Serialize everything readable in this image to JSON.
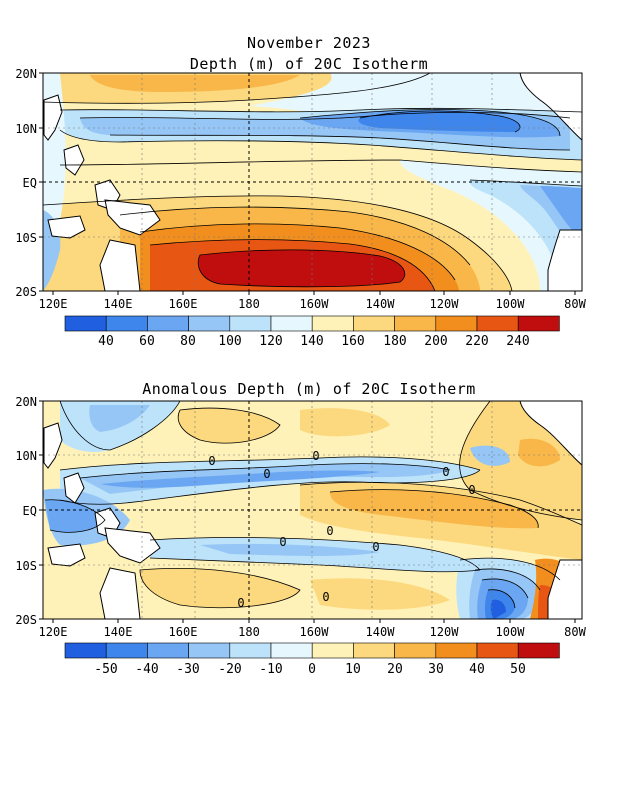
{
  "title": "November 2023",
  "panel1": {
    "title": "Depth (m) of 20C Isotherm",
    "lat_labels": [
      "20N",
      "10N",
      "EQ",
      "10S",
      "20S"
    ],
    "lon_labels": [
      "120E",
      "140E",
      "160E",
      "180",
      "160W",
      "140W",
      "120W",
      "100W",
      "80W"
    ],
    "colorbar": {
      "labels": [
        "40",
        "60",
        "80",
        "100",
        "120",
        "140",
        "160",
        "180",
        "200",
        "220",
        "240"
      ],
      "colors": [
        "#1f5fe0",
        "#3f86ec",
        "#6aa6f2",
        "#96c6f6",
        "#bde3fa",
        "#e6f8fd",
        "#fff2b8",
        "#fcd97e",
        "#f8b748",
        "#f28e1e",
        "#e85614",
        "#c00d0d"
      ]
    }
  },
  "panel2": {
    "title": "Anomalous Depth (m) of 20C Isotherm",
    "lat_labels": [
      "20N",
      "10N",
      "EQ",
      "10S",
      "20S"
    ],
    "lon_labels": [
      "120E",
      "140E",
      "160E",
      "180",
      "160W",
      "140W",
      "120W",
      "100W",
      "80W"
    ],
    "contour_label": "0",
    "colorbar": {
      "labels": [
        "-50",
        "-40",
        "-30",
        "-20",
        "-10",
        "0",
        "10",
        "20",
        "30",
        "40",
        "50"
      ],
      "colors": [
        "#1f5fe0",
        "#3f86ec",
        "#6aa6f2",
        "#96c6f6",
        "#bde3fa",
        "#e6f8fd",
        "#fff2b8",
        "#fcd97e",
        "#f8b748",
        "#f28e1e",
        "#e85614",
        "#c00d0d"
      ]
    }
  }
}
